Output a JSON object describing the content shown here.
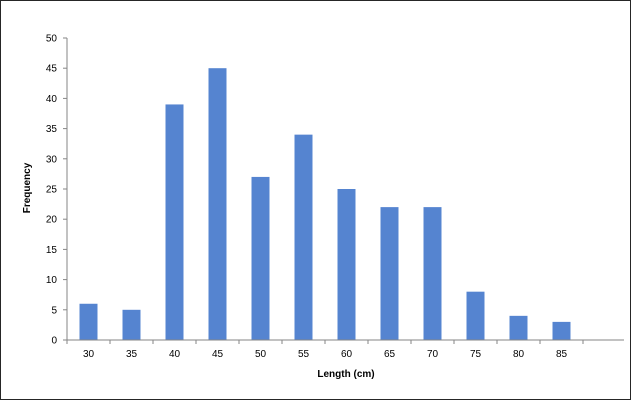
{
  "chart_data": {
    "type": "bar",
    "title": "",
    "xlabel": "Length (cm)",
    "ylabel": "Frequency",
    "categories": [
      "30",
      "35",
      "40",
      "45",
      "50",
      "55",
      "60",
      "65",
      "70",
      "75",
      "80",
      "85"
    ],
    "values": [
      6,
      5,
      39,
      45,
      27,
      34,
      25,
      22,
      22,
      8,
      4,
      3
    ],
    "ylim": [
      0,
      50
    ],
    "yticks": [
      "0",
      "5",
      "10",
      "15",
      "20",
      "25",
      "30",
      "35",
      "40",
      "45",
      "50"
    ],
    "grid": false,
    "legend": "none",
    "bar_color": "#5584d0",
    "axis_color": "#868686"
  }
}
